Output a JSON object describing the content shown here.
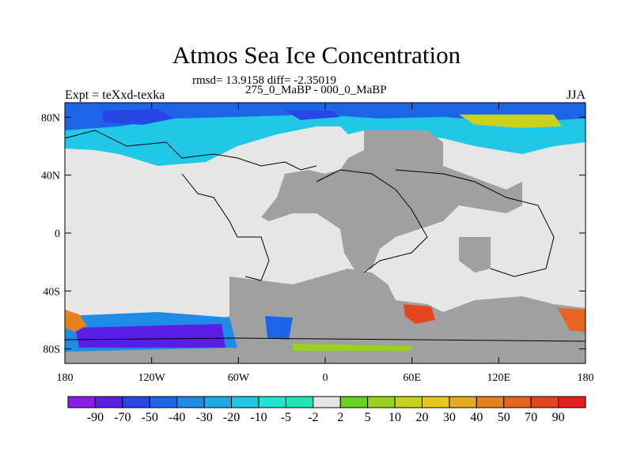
{
  "title": "Atmos Sea Ice Concentration",
  "stats": "rmsd= 13.9158 diff= -2.35019",
  "subtitle": "275_0_MaBP - 000_0_MaBP",
  "left_label": "Expt = teXxd-texka",
  "right_label": "JJA",
  "colors": {
    "land": "#a0a0a0",
    "neutral": "#e6e6e6",
    "outline": "#000000"
  },
  "map": {
    "lon_ticks": [
      "180",
      "120W",
      "60W",
      "0",
      "60E",
      "120E",
      "180"
    ],
    "lat_ticks": [
      "80N",
      "40N",
      "0",
      "40S",
      "80S"
    ]
  },
  "colorbar": {
    "labels": [
      "-90",
      "-70",
      "-50",
      "-40",
      "-30",
      "-20",
      "-10",
      "-5",
      "-2",
      "2",
      "5",
      "10",
      "20",
      "30",
      "40",
      "50",
      "70",
      "90"
    ],
    "colors": [
      "#8a1ee6",
      "#5a1ee6",
      "#2846e6",
      "#1e64e6",
      "#1e8ce6",
      "#1eaae6",
      "#1ec8e6",
      "#1ee6d2",
      "#1ee6b4",
      "#e6e6e6",
      "#64d21e",
      "#96d21e",
      "#c8d21e",
      "#e6c81e",
      "#e6aa1e",
      "#e6821e",
      "#e6641e",
      "#e6461e",
      "#e61e1e"
    ]
  }
}
